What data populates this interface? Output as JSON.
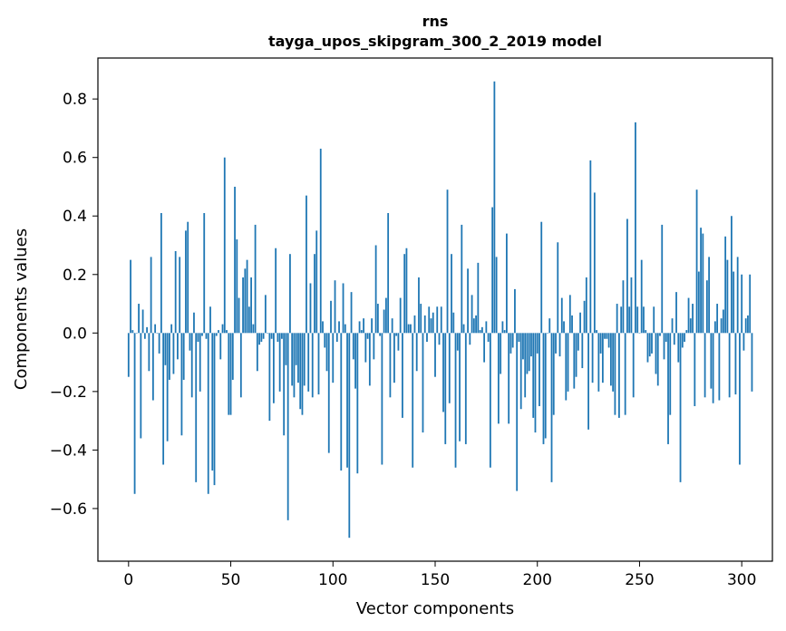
{
  "chart_data": {
    "type": "bar",
    "title": "rns",
    "subtitle": "tayga_upos_skipgram_300_2_2019 model",
    "xlabel": "Vector components",
    "ylabel": "Components values",
    "xlim": [
      -15,
      315
    ],
    "ylim": [
      -0.78,
      0.94
    ],
    "xticks": [
      0,
      50,
      100,
      150,
      200,
      250,
      300
    ],
    "yticks": [
      -0.6,
      -0.4,
      -0.2,
      0.0,
      0.2,
      0.4,
      0.6,
      0.8
    ],
    "ytick_labels": [
      "−0.6",
      "−0.4",
      "−0.2",
      "0.0",
      "0.2",
      "0.4",
      "0.6",
      "0.8"
    ],
    "bar_color": "#1f77b4",
    "x_start": 0,
    "values": [
      -0.15,
      0.25,
      0.01,
      -0.55,
      0.0,
      0.1,
      -0.36,
      0.08,
      -0.02,
      0.02,
      -0.13,
      0.26,
      -0.23,
      0.03,
      0.0,
      -0.07,
      0.41,
      -0.45,
      -0.11,
      -0.37,
      -0.16,
      0.03,
      -0.14,
      0.28,
      -0.09,
      0.26,
      -0.35,
      -0.16,
      0.35,
      0.38,
      -0.06,
      -0.22,
      0.07,
      -0.51,
      -0.03,
      -0.2,
      -0.01,
      0.41,
      -0.02,
      -0.55,
      0.09,
      -0.47,
      -0.52,
      -0.01,
      0.01,
      -0.09,
      0.03,
      0.6,
      0.01,
      -0.28,
      -0.28,
      -0.16,
      0.5,
      0.32,
      0.12,
      -0.22,
      0.19,
      0.22,
      0.25,
      0.09,
      0.19,
      0.03,
      0.37,
      -0.13,
      -0.04,
      -0.03,
      -0.02,
      0.13,
      0.0,
      -0.3,
      -0.02,
      -0.24,
      0.29,
      -0.03,
      -0.2,
      -0.02,
      -0.35,
      -0.11,
      -0.64,
      0.27,
      -0.18,
      -0.22,
      -0.11,
      -0.17,
      -0.26,
      -0.28,
      -0.18,
      0.47,
      -0.2,
      0.17,
      -0.22,
      0.27,
      0.35,
      -0.21,
      0.63,
      0.04,
      -0.05,
      -0.13,
      -0.41,
      0.11,
      -0.17,
      0.18,
      -0.03,
      0.04,
      -0.47,
      0.17,
      0.03,
      -0.46,
      -0.7,
      0.14,
      -0.09,
      -0.19,
      -0.48,
      0.04,
      0.01,
      0.05,
      -0.1,
      -0.02,
      -0.18,
      0.05,
      -0.09,
      0.3,
      0.1,
      -0.01,
      -0.45,
      0.08,
      0.12,
      0.41,
      -0.22,
      0.05,
      -0.17,
      -0.01,
      -0.06,
      0.12,
      -0.29,
      0.27,
      0.29,
      0.03,
      0.03,
      -0.46,
      0.06,
      -0.13,
      0.19,
      0.1,
      -0.34,
      0.06,
      -0.03,
      0.09,
      0.05,
      0.07,
      -0.15,
      0.09,
      -0.04,
      0.09,
      -0.27,
      -0.38,
      0.49,
      -0.24,
      0.27,
      0.07,
      -0.46,
      -0.06,
      -0.37,
      0.37,
      0.03,
      -0.38,
      0.22,
      -0.04,
      0.13,
      0.05,
      0.06,
      0.24,
      0.01,
      0.02,
      -0.1,
      0.04,
      -0.03,
      -0.46,
      0.43,
      0.86,
      0.26,
      -0.31,
      -0.14,
      0.04,
      0.01,
      0.34,
      -0.31,
      -0.07,
      -0.05,
      0.15,
      -0.54,
      -0.03,
      -0.26,
      -0.09,
      -0.22,
      -0.14,
      -0.13,
      -0.08,
      -0.29,
      -0.34,
      -0.07,
      -0.25,
      0.38,
      -0.38,
      -0.36,
      0.0,
      0.05,
      -0.51,
      -0.28,
      -0.07,
      0.31,
      -0.08,
      0.12,
      0.04,
      -0.23,
      -0.2,
      0.13,
      0.06,
      -0.19,
      -0.15,
      -0.06,
      0.07,
      -0.12,
      0.11,
      0.19,
      -0.33,
      0.59,
      -0.17,
      0.48,
      0.01,
      -0.2,
      -0.07,
      -0.17,
      -0.02,
      -0.02,
      -0.05,
      -0.18,
      -0.2,
      -0.28,
      0.1,
      -0.29,
      0.09,
      0.18,
      -0.28,
      0.39,
      0.09,
      0.19,
      -0.22,
      0.72,
      0.09,
      0.0,
      0.25,
      0.09,
      0.01,
      -0.1,
      -0.08,
      -0.07,
      0.09,
      -0.14,
      -0.18,
      -0.01,
      0.37,
      -0.09,
      -0.03,
      -0.38,
      -0.28,
      0.05,
      -0.04,
      0.14,
      -0.1,
      -0.51,
      -0.05,
      -0.03,
      0.01,
      0.12,
      0.05,
      0.1,
      -0.25,
      0.49,
      0.21,
      0.36,
      0.34,
      -0.22,
      0.18,
      0.26,
      -0.19,
      -0.24,
      0.04,
      0.1,
      -0.23,
      0.05,
      0.08,
      0.33,
      0.25,
      -0.22,
      0.4,
      0.21,
      -0.21,
      0.26,
      -0.45,
      0.2,
      -0.06,
      0.05,
      0.06,
      0.2,
      -0.2
    ]
  }
}
